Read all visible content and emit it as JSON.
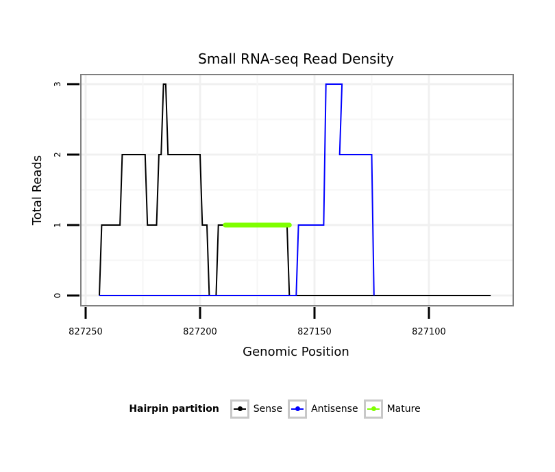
{
  "chart_data": {
    "type": "line",
    "title": "Small RNA-seq Read Density",
    "xlabel": "Genomic Position",
    "ylabel": "Total Reads",
    "xlim": [
      827260,
      827070
    ],
    "ylim": [
      0,
      3
    ],
    "x_ticks": [
      827250,
      827200,
      827150,
      827100
    ],
    "y_ticks": [
      0,
      1,
      2,
      3
    ],
    "legend": {
      "title": "Hairpin partition",
      "placement": "bottom",
      "entries": [
        {
          "name": "Sense",
          "color": "#000000"
        },
        {
          "name": "Antisense",
          "color": "#0000ff"
        },
        {
          "name": "Mature",
          "color": "#7fff00"
        }
      ]
    },
    "series": [
      {
        "name": "Sense",
        "color": "#000000",
        "x": [
          827244,
          827243,
          827235,
          827234,
          827224,
          827223,
          827219,
          827218,
          827217,
          827216,
          827215,
          827214,
          827213,
          827212,
          827210,
          827209,
          827200,
          827199,
          827197,
          827196,
          827193,
          827192,
          827189,
          827188,
          827162,
          827161,
          827159,
          827158,
          827073
        ],
        "y": [
          0,
          1,
          1,
          2,
          2,
          1,
          1,
          2,
          2,
          3,
          3,
          2,
          2,
          2,
          2,
          2,
          2,
          1,
          1,
          0,
          0,
          1,
          1,
          1,
          1,
          0,
          0,
          0,
          0
        ]
      },
      {
        "name": "Antisense",
        "color": "#0000ff",
        "x": [
          827244,
          827158,
          827157,
          827146,
          827145,
          827143,
          827138,
          827139,
          827128,
          827125,
          827124
        ],
        "y": [
          0,
          0,
          1,
          1,
          3,
          3,
          3,
          2,
          2,
          2,
          0
        ]
      },
      {
        "name": "Mature",
        "color": "#7fff00",
        "x": [
          827189,
          827161
        ],
        "y": [
          1,
          1
        ]
      }
    ]
  }
}
